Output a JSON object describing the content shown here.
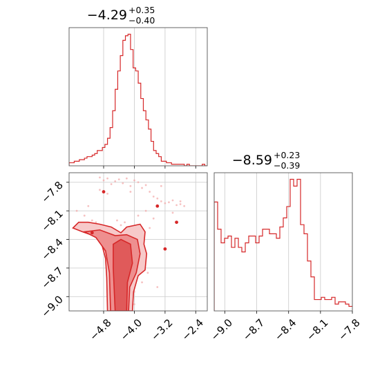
{
  "chart_data": [
    {
      "type": "histogram",
      "title": {
        "value": "−4.29",
        "sup": "+0.35",
        "sub": "−0.40"
      },
      "x_range": [
        -5.7,
        -2.1
      ],
      "xticks": [
        -4.8,
        -4.0,
        -3.2,
        -2.4
      ],
      "grid": true,
      "bin_edges_start": -5.7,
      "bin_width": 0.0667,
      "counts": [
        2,
        2,
        3,
        3,
        4,
        4,
        5,
        6,
        6,
        7,
        8,
        10,
        10,
        12,
        14,
        18,
        25,
        36,
        50,
        62,
        72,
        82,
        85,
        86,
        76,
        64,
        62,
        54,
        44,
        36,
        30,
        24,
        16,
        10,
        8,
        6,
        3,
        3,
        2,
        2,
        1,
        1,
        1,
        1,
        1,
        0,
        1,
        0,
        0,
        0,
        0,
        0,
        1,
        0
      ]
    },
    {
      "type": "scatter_contour",
      "x_range": [
        -5.7,
        -2.1
      ],
      "y_range": [
        -9.15,
        -7.7
      ],
      "xticks": [
        -4.8,
        -4.0,
        -3.2,
        -2.4
      ],
      "yticks": [
        -7.8,
        -8.1,
        -8.4,
        -8.7,
        -9.0
      ],
      "grid": true,
      "x": [
        -4.9,
        -4.8,
        -4.7,
        -4.6,
        -4.5,
        -4.4,
        -4.3,
        -4.2,
        -4.1,
        -4.0,
        -3.9,
        -3.8,
        -3.7,
        -3.6,
        -3.5,
        -3.4,
        -3.3,
        -3.2,
        -3.1,
        -3.0,
        -2.9,
        -2.8,
        -2.7,
        -5.5,
        -5.3,
        -5.1,
        -4.95,
        -4.85,
        -4.75,
        -4.65,
        -4.55,
        -4.45,
        -4.35,
        -4.25,
        -4.15,
        -4.05,
        -3.95,
        -3.85,
        -3.75,
        -3.65,
        -4.6,
        -4.5,
        -4.4,
        -4.3,
        -4.2,
        -4.1,
        -4.0,
        -4.55,
        -4.45,
        -4.35,
        -4.25,
        -4.15,
        -4.5,
        -4.4,
        -4.3,
        -4.2,
        -4.45,
        -4.35,
        -4.25,
        -4.45,
        -4.35,
        -4.25,
        -4.15,
        -4.05,
        -3.9,
        -3.8,
        -4.7,
        -4.1,
        -3.7,
        -5.2,
        -3.0,
        -2.8,
        -4.9,
        -3.3,
        -3.5,
        -3.6,
        -3.9,
        -4.2,
        -5.0,
        -4.7,
        -3.4,
        -4.0,
        -3.8
      ],
      "y": [
        -7.75,
        -7.78,
        -7.76,
        -7.82,
        -7.79,
        -7.77,
        -7.81,
        -7.76,
        -7.84,
        -7.78,
        -7.8,
        -7.86,
        -7.83,
        -7.9,
        -7.95,
        -7.97,
        -8.0,
        -8.02,
        -8.01,
        -7.99,
        -8.04,
        -8.03,
        -8.05,
        -8.1,
        -8.15,
        -8.2,
        -8.25,
        -8.3,
        -8.35,
        -8.28,
        -8.33,
        -8.38,
        -8.42,
        -8.45,
        -8.5,
        -8.55,
        -8.6,
        -8.65,
        -8.7,
        -8.75,
        -8.8,
        -8.85,
        -8.9,
        -8.95,
        -9.0,
        -9.05,
        -9.08,
        -8.72,
        -8.78,
        -8.82,
        -8.88,
        -8.92,
        -8.98,
        -9.02,
        -9.06,
        -9.1,
        -8.4,
        -8.5,
        -8.6,
        -8.2,
        -8.25,
        -8.22,
        -8.3,
        -8.36,
        -8.15,
        -8.45,
        -7.92,
        -7.9,
        -8.1,
        -8.05,
        -8.12,
        -8.0,
        -7.88,
        -7.84,
        -8.18,
        -8.28,
        -8.32,
        -8.48,
        -8.22,
        -8.62,
        -8.9,
        -8.95,
        -8.85
      ],
      "highlight_points": [
        {
          "x": -4.8,
          "y": -7.9
        },
        {
          "x": -3.4,
          "y": -8.05
        },
        {
          "x": -2.9,
          "y": -8.22
        },
        {
          "x": -3.2,
          "y": -8.5
        },
        {
          "x": -5.1,
          "y": -8.33
        }
      ]
    },
    {
      "type": "histogram",
      "title": {
        "value": "−8.59",
        "sup": "+0.23",
        "sub": "−0.39"
      },
      "x_range": [
        -9.1,
        -7.8
      ],
      "xticks": [
        -9.0,
        -8.7,
        -8.4,
        -8.1,
        -7.8
      ],
      "grid": true,
      "bin_edges_start": -9.1,
      "bin_width": 0.0325,
      "counts": [
        48,
        36,
        30,
        32,
        33,
        28,
        32,
        28,
        26,
        30,
        33,
        33,
        30,
        33,
        36,
        36,
        34,
        34,
        32,
        37,
        41,
        46,
        58,
        55,
        58,
        38,
        34,
        22,
        15,
        5,
        5,
        6,
        5,
        5,
        6,
        3,
        4,
        4,
        3,
        2,
        2,
        1
      ]
    }
  ]
}
